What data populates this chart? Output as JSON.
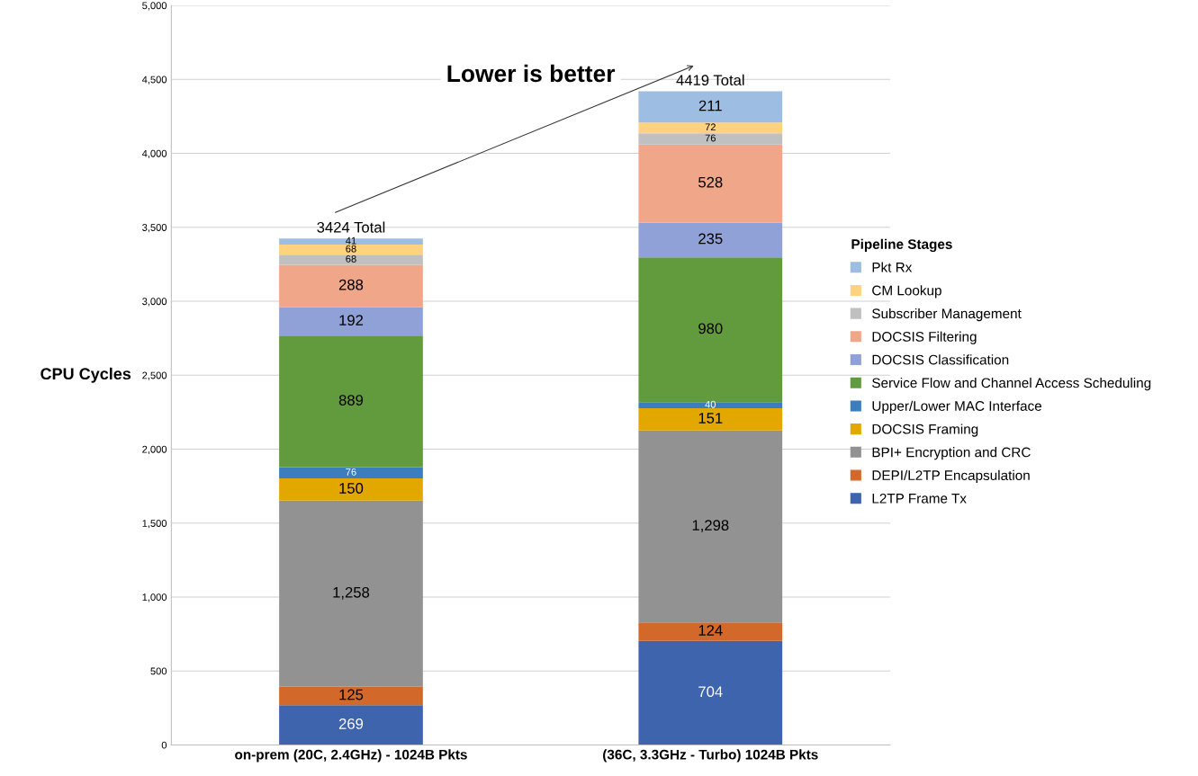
{
  "chart_data": {
    "type": "bar",
    "stacked": true,
    "ylabel": "CPU Cycles",
    "legend_title": "Pipeline Stages",
    "legend": "right",
    "categories": [
      "on-prem (20C, 2.4GHz) - 1024B Pkts",
      "(36C, 3.3GHz - Turbo) 1024B Pkts"
    ],
    "series": [
      {
        "name": "L2TP Frame Tx",
        "color": "#3d64ad",
        "values": [
          269,
          704
        ],
        "value_labels": [
          "269",
          "704"
        ]
      },
      {
        "name": "DEPI/L2TP Encapsulation",
        "color": "#d2692a",
        "values": [
          125,
          124
        ],
        "value_labels": [
          "125",
          "124"
        ]
      },
      {
        "name": "BPI+ Encryption and CRC",
        "color": "#929292",
        "values": [
          1258,
          1298
        ],
        "value_labels": [
          "1,258",
          "1,298"
        ]
      },
      {
        "name": "DOCSIS Framing",
        "color": "#e3a800",
        "values": [
          150,
          151
        ],
        "value_labels": [
          "150",
          "151"
        ]
      },
      {
        "name": "Upper/Lower MAC Interface",
        "color": "#3b7dbd",
        "values": [
          76,
          40
        ],
        "value_labels": [
          "76",
          "40"
        ]
      },
      {
        "name": "Service Flow and Channel Access Scheduling",
        "color": "#629a3e",
        "values": [
          889,
          980
        ],
        "value_labels": [
          "889",
          "980"
        ]
      },
      {
        "name": "DOCSIS Classification",
        "color": "#8fa1d6",
        "values": [
          192,
          235
        ],
        "value_labels": [
          "192",
          "235"
        ]
      },
      {
        "name": "DOCSIS Filtering",
        "color": "#f0a789",
        "values": [
          288,
          528
        ],
        "value_labels": [
          "288",
          "528"
        ]
      },
      {
        "name": "Subscriber Management",
        "color": "#c0c0c0",
        "values": [
          68,
          76
        ],
        "value_labels": [
          "68",
          "76"
        ]
      },
      {
        "name": "CM Lookup",
        "color": "#fed27f",
        "values": [
          68,
          72
        ],
        "value_labels": [
          "68",
          "72"
        ]
      },
      {
        "name": "Pkt Rx",
        "color": "#9dbde3",
        "values": [
          41,
          211
        ],
        "value_labels": [
          "41",
          "211"
        ]
      }
    ],
    "totals": [
      "3424 Total",
      "4419 Total"
    ],
    "annotations": [
      "Lower is better"
    ],
    "ylim": [
      0,
      5000
    ],
    "yticks": [
      0,
      500,
      {
        "value": 1000,
        "label": "1,000"
      },
      {
        "value": 1500,
        "label": "1,500"
      },
      {
        "value": 2000,
        "label": "2,000"
      },
      {
        "value": 2500,
        "label": "2,500"
      },
      {
        "value": 3000,
        "label": "3,000"
      },
      {
        "value": 3500,
        "label": "3,500"
      },
      {
        "value": 4000,
        "label": "4,000"
      },
      {
        "value": 4500,
        "label": "4,500"
      },
      {
        "value": 5000,
        "label": "5,000"
      }
    ],
    "grid": "y"
  }
}
